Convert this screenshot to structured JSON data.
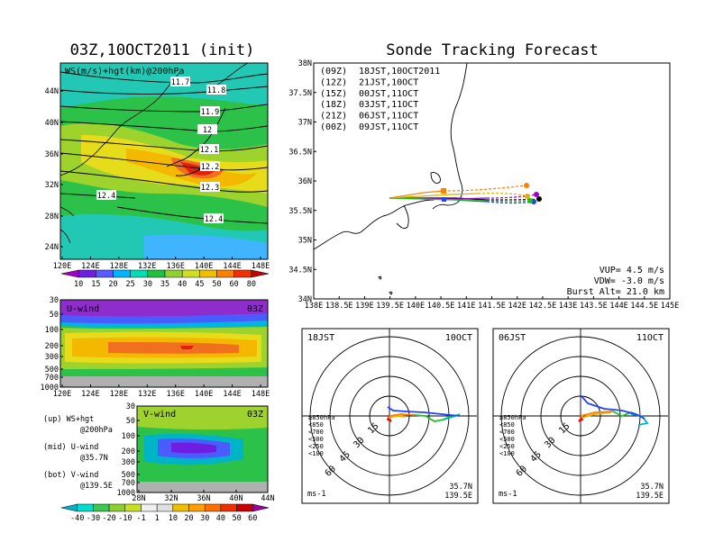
{
  "titles": {
    "left": "03Z,10OCT2011 (init)",
    "right": "Sonde Tracking Forecast"
  },
  "map_panel": {
    "label": "WS(m/s)+hgt(km)@200hPa",
    "lon_ticks": [
      "120E",
      "124E",
      "128E",
      "132E",
      "136E",
      "140E",
      "144E",
      "148E"
    ],
    "lat_ticks": [
      "24N",
      "28N",
      "32N",
      "36N",
      "40N",
      "44N"
    ],
    "height_labels": [
      "11.7",
      "11.8",
      "11.9",
      "12",
      "12.1",
      "12.2",
      "12.3",
      "12.4",
      "12.4"
    ],
    "colorbar_ticks": [
      "10",
      "15",
      "20",
      "25",
      "30",
      "35",
      "40",
      "45",
      "50",
      "60",
      "80"
    ],
    "colorbar_colors": [
      "#a000c8",
      "#6e1ee0",
      "#5a5aff",
      "#00b4ff",
      "#00dcb4",
      "#20c040",
      "#90d030",
      "#d0e020",
      "#f0c000",
      "#ff8000",
      "#f03000",
      "#c80000"
    ]
  },
  "uwind_panel": {
    "label": "U-wind",
    "time": "03Z",
    "lon_ticks": [
      "120E",
      "124E",
      "128E",
      "132E",
      "136E",
      "140E",
      "144E",
      "148E"
    ],
    "p_ticks": [
      "30",
      "50",
      "100",
      "200",
      "300",
      "500",
      "700",
      "1000"
    ]
  },
  "vwind_panel": {
    "label": "V-wind",
    "time": "03Z",
    "lat_ticks": [
      "28N",
      "32N",
      "36N",
      "40N",
      "44N"
    ],
    "p_ticks": [
      "30",
      "50",
      "100",
      "200",
      "300",
      "500",
      "700",
      "1000"
    ],
    "colorbar_ticks": [
      "-40",
      "-30",
      "-20",
      "-10",
      "-1",
      "1",
      "10",
      "20",
      "30",
      "40",
      "50",
      "60"
    ],
    "colorbar_colors": [
      "#00b4c8",
      "#00dcd0",
      "#3cc850",
      "#8cd030",
      "#c8e020",
      "#f0f0f0",
      "#e0e0e0",
      "#f0c000",
      "#ffa000",
      "#ff7000",
      "#f03000",
      "#c80000",
      "#a000a0"
    ]
  },
  "legend_text": {
    "up_1": "(up) WS+hgt",
    "up_2": "@200hPa",
    "mid_1": "(mid) U-wind",
    "mid_2": "@35.7N",
    "bot_1": "(bot) V-wind",
    "bot_2": "@139.5E"
  },
  "tracking": {
    "lat_ticks": [
      "34N",
      "34.5N",
      "35N",
      "35.5N",
      "36N",
      "36.5N",
      "37N",
      "37.5N",
      "38N"
    ],
    "lon_ticks": [
      "138E",
      "138.5E",
      "139E",
      "139.5E",
      "140E",
      "140.5E",
      "141E",
      "141.5E",
      "142E",
      "142.5E",
      "143E",
      "143.5E",
      "144E",
      "144.5E",
      "145E"
    ],
    "legend": [
      {
        "tag": "(09Z)",
        "text": "18JST,10OCT2011",
        "color": "#000000"
      },
      {
        "tag": "(12Z)",
        "text": "21JST,10OCT",
        "color": "#a000c8"
      },
      {
        "tag": "(15Z)",
        "text": "00JST,11OCT",
        "color": "#2040ff"
      },
      {
        "tag": "(18Z)",
        "text": "03JST,11OCT",
        "color": "#20c020"
      },
      {
        "tag": "(21Z)",
        "text": "06JST,11OCT",
        "color": "#e0b000"
      },
      {
        "tag": "(00Z)",
        "text": "09JST,11OCT",
        "color": "#ff8000"
      }
    ],
    "vup": "VUP= 4.5 m/s",
    "vdw": "VDW= -3.0 m/s",
    "burst": "Burst Alt= 21.0 km"
  },
  "hodo_left": {
    "left_label": "18JST",
    "right_label": "10OCT",
    "ring_labels": [
      "15",
      "30",
      "45",
      "60"
    ],
    "levels": [
      {
        "text": "≥850hPa",
        "color": "#ff0000"
      },
      {
        "text": "<850",
        "color": "#e0b000"
      },
      {
        "text": "<700",
        "color": "#ff8000"
      },
      {
        "text": "<500",
        "color": "#20c020"
      },
      {
        "text": "<250",
        "color": "#00b4c8"
      },
      {
        "text": "<100",
        "color": "#2040ff"
      }
    ],
    "lat": "35.7N",
    "lon": "139.5E",
    "unit": "ms-1"
  },
  "hodo_right": {
    "left_label": "06JST",
    "right_label": "11OCT",
    "ring_labels": [
      "15",
      "30",
      "45",
      "60"
    ],
    "levels": [
      {
        "text": "≥850hPa",
        "color": "#ff0000"
      },
      {
        "text": "<850",
        "color": "#e0b000"
      },
      {
        "text": "<700",
        "color": "#ff8000"
      },
      {
        "text": "<500",
        "color": "#20c020"
      },
      {
        "text": "<250",
        "color": "#00b4c8"
      },
      {
        "text": "<100",
        "color": "#2040ff"
      }
    ],
    "lat": "35.7N",
    "lon": "139.5E",
    "unit": "ms-1"
  }
}
